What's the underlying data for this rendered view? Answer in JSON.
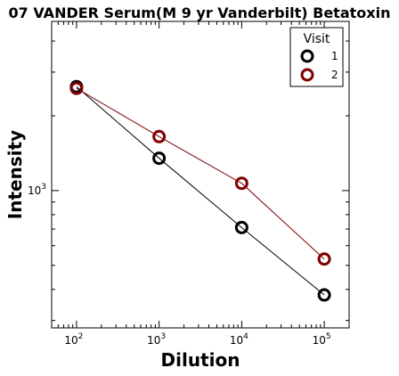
{
  "chart_data": {
    "type": "line",
    "title": "07 VANDER Serum(M 9 yr Vanderbilt) Betatoxin",
    "xlabel": "Dilution",
    "ylabel": "Intensity",
    "xscale": "log",
    "yscale": "log",
    "xlim": [
      50,
      200000
    ],
    "ylim": [
      280,
      4800
    ],
    "x": [
      100,
      1000,
      10000,
      100000
    ],
    "x_ticks": [
      {
        "value": 100,
        "base": "10",
        "exp": "2"
      },
      {
        "value": 1000,
        "base": "10",
        "exp": "3"
      },
      {
        "value": 10000,
        "base": "10",
        "exp": "4"
      },
      {
        "value": 100000,
        "base": "10",
        "exp": "5"
      }
    ],
    "y_ticks": [
      {
        "value": 1000,
        "base": "10",
        "exp": "3"
      }
    ],
    "legend": {
      "title": "Visit",
      "position": "top-right"
    },
    "series": [
      {
        "name": "1",
        "color": "#000000",
        "values": [
          2620,
          1350,
          710,
          380
        ]
      },
      {
        "name": "2",
        "color": "#7f0000",
        "values": [
          2580,
          1650,
          1070,
          530
        ]
      }
    ],
    "grid": false
  }
}
